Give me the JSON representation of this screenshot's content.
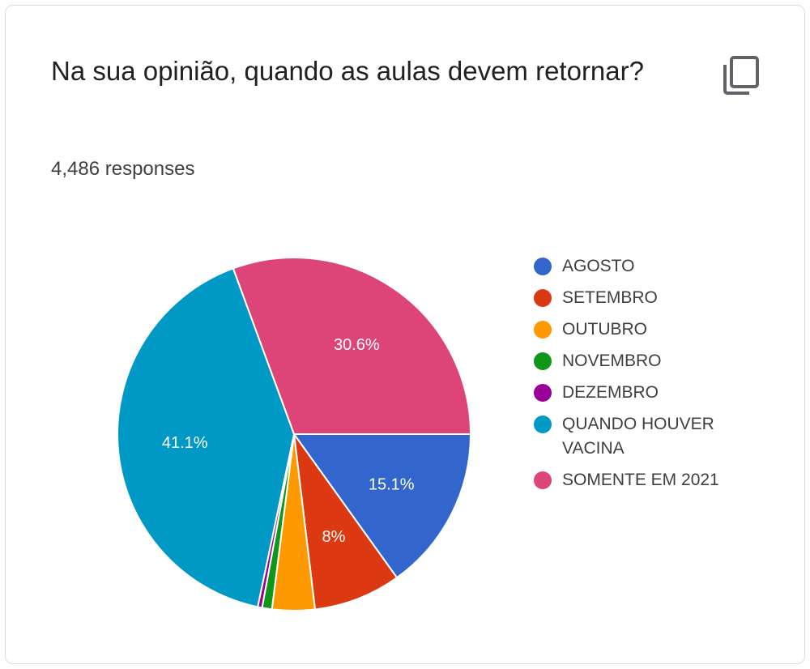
{
  "header": {
    "title": "Na sua opinião, quando as aulas devem retornar?",
    "responses": "4,486 responses",
    "copy_icon": "copy-icon"
  },
  "chart_data": {
    "type": "pie",
    "title": "Na sua opinião, quando as aulas devem retornar?",
    "slices": [
      {
        "name": "AGOSTO",
        "value": 15.1,
        "label": "15.1%",
        "color": "#3366cc"
      },
      {
        "name": "SETEMBRO",
        "value": 8.0,
        "label": "8%",
        "color": "#dc3912"
      },
      {
        "name": "OUTUBRO",
        "value": 3.9,
        "label": "",
        "color": "#ff9900"
      },
      {
        "name": "NOVEMBRO",
        "value": 0.9,
        "label": "",
        "color": "#109618"
      },
      {
        "name": "DEZEMBRO",
        "value": 0.4,
        "label": "",
        "color": "#990099"
      },
      {
        "name": "QUANDO HOUVER VACINA",
        "value": 41.1,
        "label": "41.1%",
        "color": "#0099c6"
      },
      {
        "name": "SOMENTE EM 2021",
        "value": 30.6,
        "label": "30.6%",
        "color": "#dd4477"
      }
    ],
    "legend_position": "right"
  }
}
